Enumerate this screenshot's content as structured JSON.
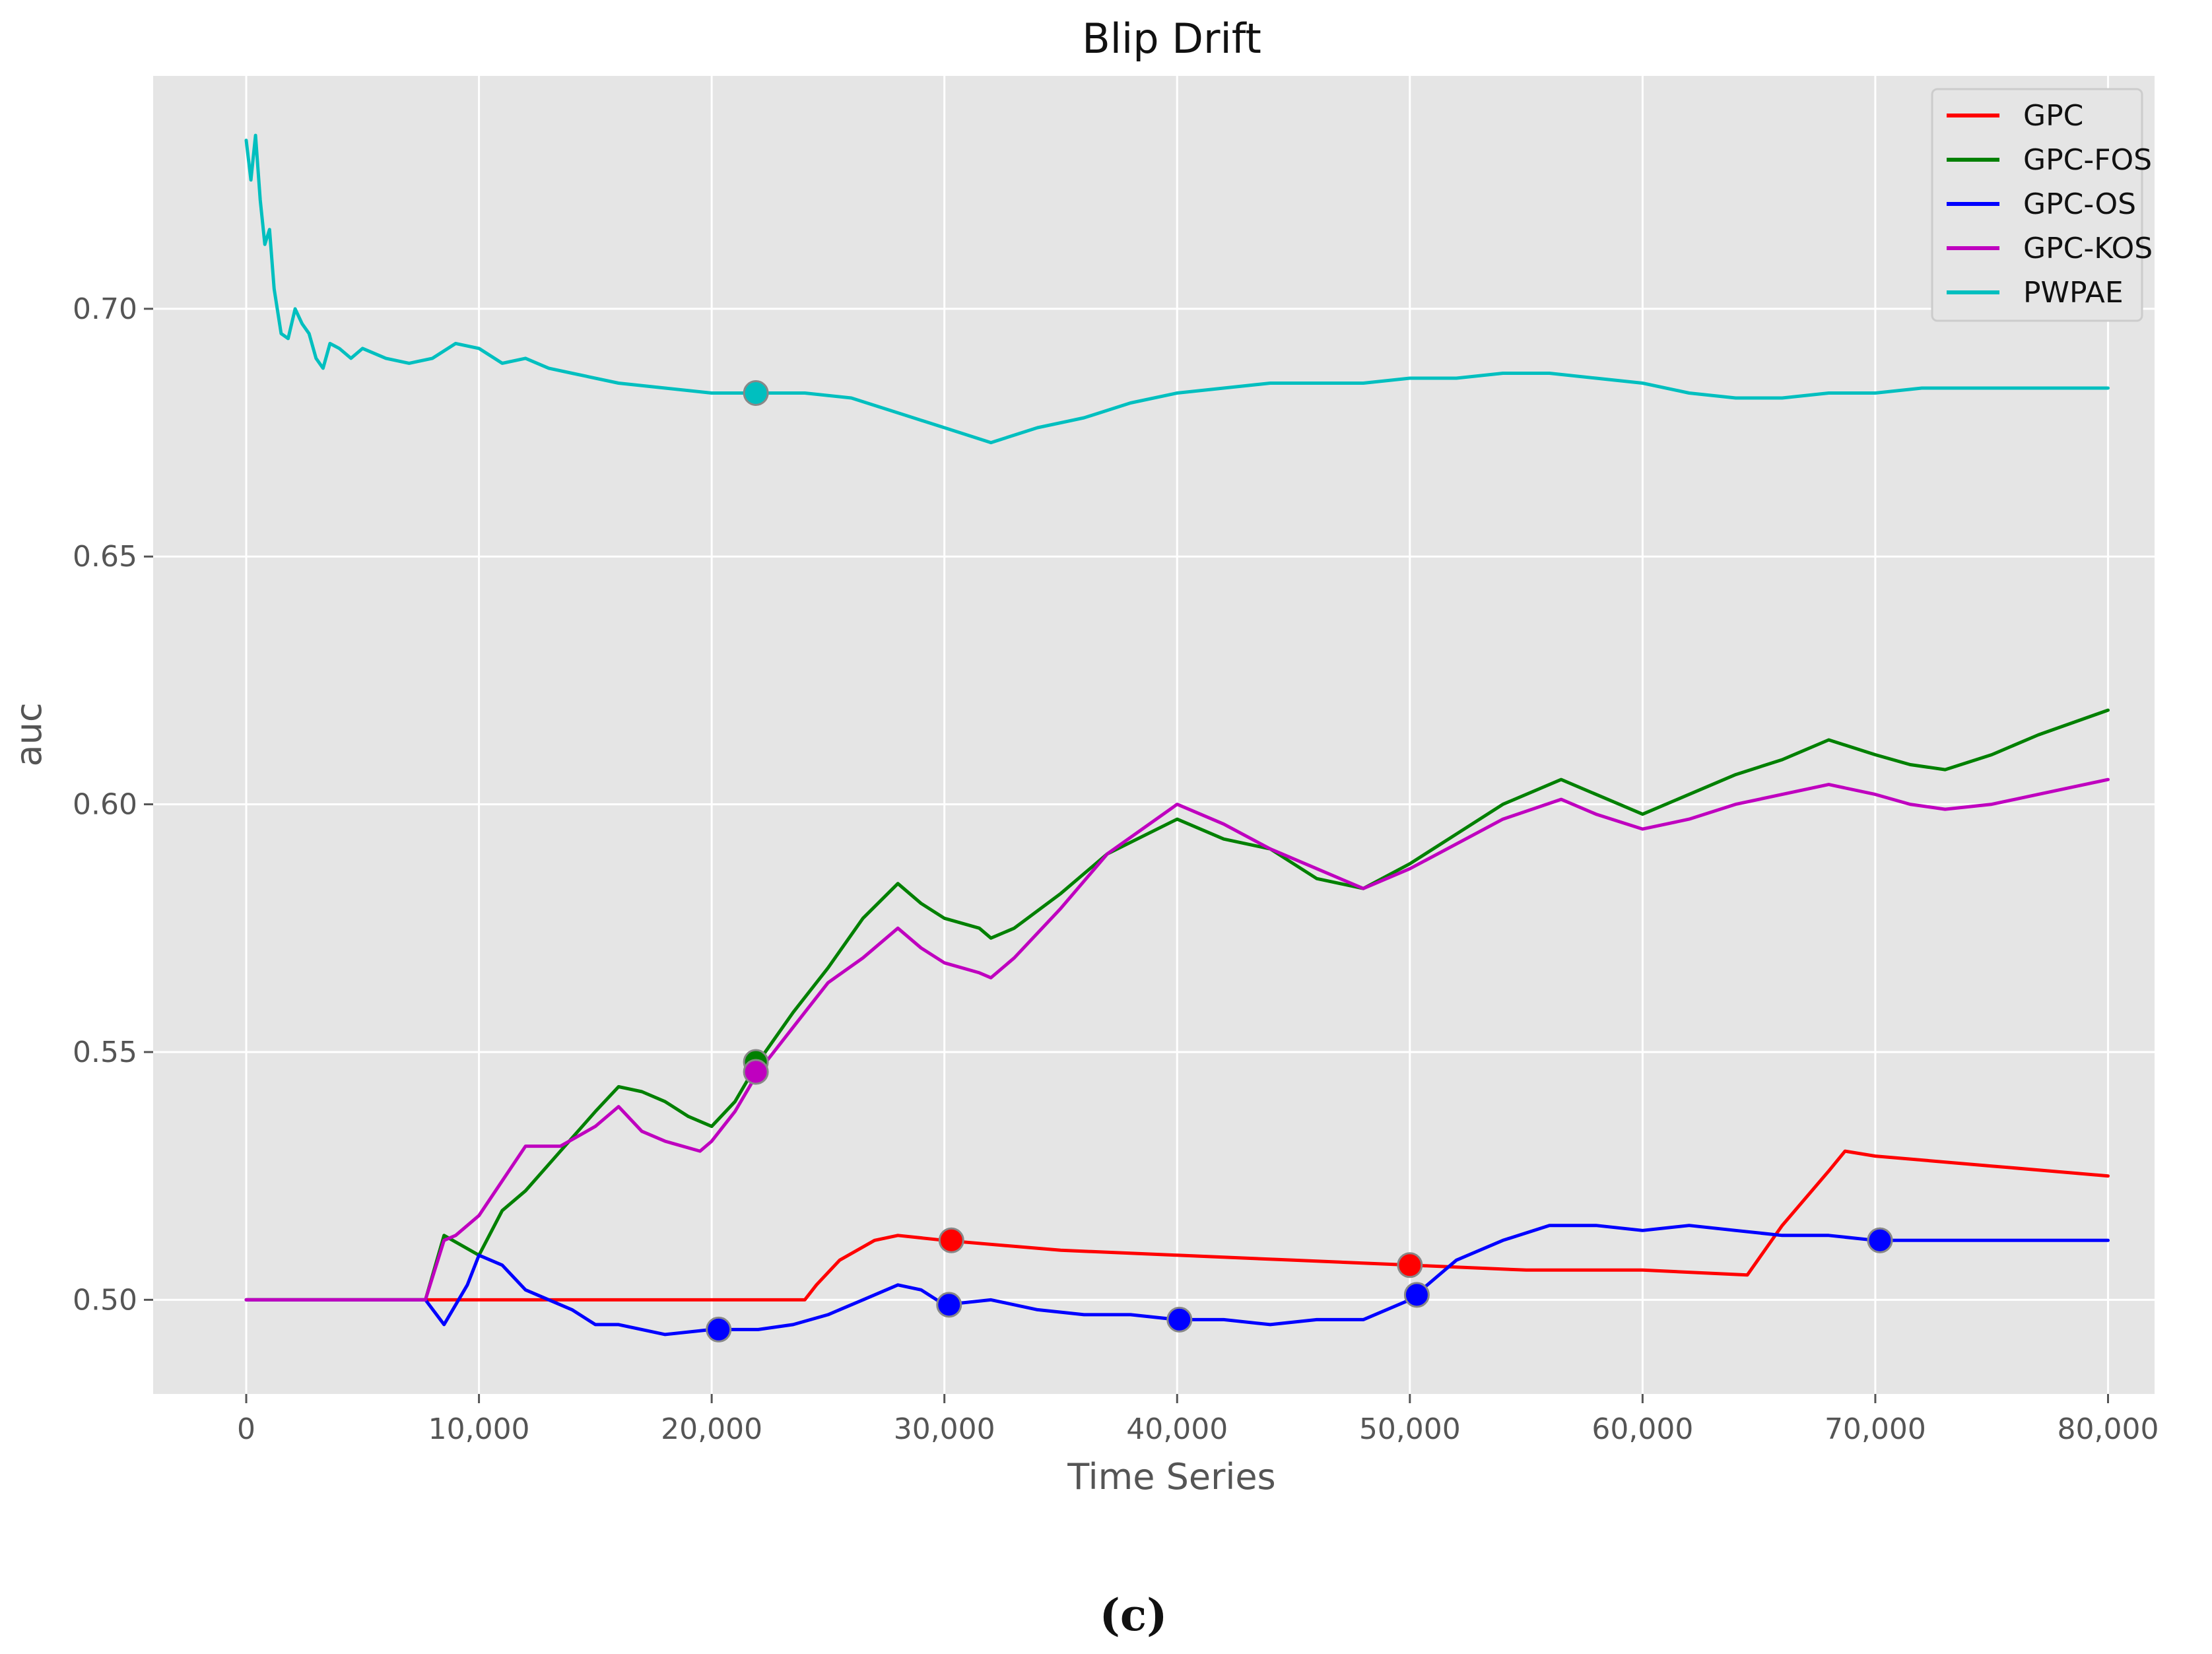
{
  "chart_data": {
    "type": "line",
    "title": "Blip Drift",
    "xlabel": "Time Series",
    "ylabel": "auc",
    "caption": "(c)",
    "xlim": [
      -4000,
      82000
    ],
    "ylim": [
      0.481,
      0.747
    ],
    "x_ticks": [
      0,
      10000,
      20000,
      30000,
      40000,
      50000,
      60000,
      70000,
      80000
    ],
    "x_tick_labels": [
      "0",
      "10,000",
      "20,000",
      "30,000",
      "40,000",
      "50,000",
      "60,000",
      "70,000",
      "80,000"
    ],
    "y_ticks": [
      0.5,
      0.55,
      0.6,
      0.65,
      0.7
    ],
    "y_tick_labels": [
      "0.50",
      "0.55",
      "0.60",
      "0.65",
      "0.70"
    ],
    "grid": true,
    "legend_position": "top-right",
    "background": "#e5e5e5",
    "series": [
      {
        "name": "GPC",
        "color": "#ff0000",
        "x": [
          0,
          8000,
          10000,
          20000,
          24000,
          24500,
          25500,
          27000,
          28000,
          30000,
          35000,
          40000,
          45000,
          50000,
          55000,
          60000,
          64500,
          66000,
          68000,
          68700,
          70000,
          75000,
          80000
        ],
        "y": [
          0.5,
          0.5,
          0.5,
          0.5,
          0.5,
          0.503,
          0.508,
          0.512,
          0.513,
          0.512,
          0.51,
          0.509,
          0.508,
          0.507,
          0.506,
          0.506,
          0.505,
          0.515,
          0.526,
          0.53,
          0.529,
          0.527,
          0.525
        ],
        "markers": [
          {
            "x": 30300,
            "y": 0.512
          },
          {
            "x": 50000,
            "y": 0.507
          },
          {
            "x": 70200,
            "y": 0.512
          }
        ]
      },
      {
        "name": "GPC-FOS",
        "color": "#008000",
        "x": [
          0,
          7700,
          8500,
          10000,
          11000,
          12000,
          13500,
          15000,
          16000,
          17000,
          18000,
          19000,
          20000,
          21000,
          22000,
          23500,
          25000,
          26500,
          28000,
          29000,
          30000,
          31500,
          32000,
          33000,
          35000,
          37000,
          40000,
          42000,
          44000,
          46000,
          48000,
          50000,
          52000,
          54000,
          56500,
          58000,
          60000,
          62000,
          64000,
          66000,
          68000,
          70000,
          71500,
          73000,
          75000,
          77000,
          80000
        ],
        "y": [
          0.5,
          0.5,
          0.513,
          0.509,
          0.518,
          0.522,
          0.53,
          0.538,
          0.543,
          0.542,
          0.54,
          0.537,
          0.535,
          0.54,
          0.548,
          0.558,
          0.567,
          0.577,
          0.584,
          0.58,
          0.577,
          0.575,
          0.573,
          0.575,
          0.582,
          0.59,
          0.597,
          0.593,
          0.591,
          0.585,
          0.583,
          0.588,
          0.594,
          0.6,
          0.605,
          0.602,
          0.598,
          0.602,
          0.606,
          0.609,
          0.613,
          0.61,
          0.608,
          0.607,
          0.61,
          0.614,
          0.619
        ],
        "markers": [
          {
            "x": 21900,
            "y": 0.548
          }
        ]
      },
      {
        "name": "GPC-OS",
        "color": "#0000ff",
        "x": [
          0,
          7700,
          8500,
          9500,
          10000,
          11000,
          12000,
          14000,
          15000,
          16000,
          18000,
          20000,
          22000,
          23500,
          25000,
          26500,
          28000,
          29000,
          30000,
          32000,
          34000,
          36000,
          38000,
          40000,
          42000,
          44000,
          46000,
          48000,
          50000,
          52000,
          54000,
          56000,
          58000,
          60000,
          62000,
          64000,
          66000,
          68000,
          70000,
          72000,
          75000,
          78000,
          80000
        ],
        "y": [
          0.5,
          0.5,
          0.495,
          0.503,
          0.509,
          0.507,
          0.502,
          0.498,
          0.495,
          0.495,
          0.493,
          0.494,
          0.494,
          0.495,
          0.497,
          0.5,
          0.503,
          0.502,
          0.499,
          0.5,
          0.498,
          0.497,
          0.497,
          0.496,
          0.496,
          0.495,
          0.496,
          0.496,
          0.5,
          0.508,
          0.512,
          0.515,
          0.515,
          0.514,
          0.515,
          0.514,
          0.513,
          0.513,
          0.512,
          0.512,
          0.512,
          0.512,
          0.512
        ],
        "markers": [
          {
            "x": 20300,
            "y": 0.494
          },
          {
            "x": 30200,
            "y": 0.499
          },
          {
            "x": 40100,
            "y": 0.496
          },
          {
            "x": 50300,
            "y": 0.501
          },
          {
            "x": 70200,
            "y": 0.512
          }
        ]
      },
      {
        "name": "GPC-KOS",
        "color": "#bf00bf",
        "x": [
          0,
          7700,
          8500,
          9000,
          10000,
          11000,
          12000,
          13500,
          15000,
          16000,
          17000,
          18000,
          19500,
          20000,
          21000,
          22000,
          23500,
          25000,
          26500,
          28000,
          29000,
          30000,
          31500,
          32000,
          33000,
          35000,
          37000,
          40000,
          42000,
          44000,
          46000,
          48000,
          50000,
          52000,
          54000,
          56500,
          58000,
          60000,
          62000,
          64000,
          66000,
          68000,
          70000,
          71500,
          73000,
          75000,
          77000,
          80000
        ],
        "y": [
          0.5,
          0.5,
          0.512,
          0.513,
          0.517,
          0.524,
          0.531,
          0.531,
          0.535,
          0.539,
          0.534,
          0.532,
          0.53,
          0.532,
          0.538,
          0.546,
          0.555,
          0.564,
          0.569,
          0.575,
          0.571,
          0.568,
          0.566,
          0.565,
          0.569,
          0.579,
          0.59,
          0.6,
          0.596,
          0.591,
          0.587,
          0.583,
          0.587,
          0.592,
          0.597,
          0.601,
          0.598,
          0.595,
          0.597,
          0.6,
          0.602,
          0.604,
          0.602,
          0.6,
          0.599,
          0.6,
          0.602,
          0.605
        ],
        "markers": [
          {
            "x": 21900,
            "y": 0.546
          }
        ]
      },
      {
        "name": "PWPAE",
        "color": "#00bfbf",
        "x": [
          0,
          200,
          400,
          600,
          800,
          1000,
          1200,
          1500,
          1800,
          2100,
          2400,
          2700,
          3000,
          3300,
          3600,
          4000,
          4500,
          5000,
          6000,
          7000,
          8000,
          9000,
          10000,
          11000,
          12000,
          13000,
          14000,
          16000,
          18000,
          20000,
          22000,
          24000,
          26000,
          28000,
          30000,
          32000,
          34000,
          36000,
          38000,
          40000,
          42000,
          44000,
          46000,
          48000,
          50000,
          52000,
          54000,
          56000,
          58000,
          60000,
          62000,
          64000,
          66000,
          68000,
          70000,
          72000,
          74000,
          76000,
          78000,
          80000
        ],
        "y": [
          0.734,
          0.726,
          0.735,
          0.722,
          0.713,
          0.716,
          0.704,
          0.695,
          0.694,
          0.7,
          0.697,
          0.695,
          0.69,
          0.688,
          0.693,
          0.692,
          0.69,
          0.692,
          0.69,
          0.689,
          0.69,
          0.693,
          0.692,
          0.689,
          0.69,
          0.688,
          0.687,
          0.685,
          0.684,
          0.683,
          0.683,
          0.683,
          0.682,
          0.679,
          0.676,
          0.673,
          0.676,
          0.678,
          0.681,
          0.683,
          0.684,
          0.685,
          0.685,
          0.685,
          0.686,
          0.686,
          0.687,
          0.687,
          0.686,
          0.685,
          0.683,
          0.682,
          0.682,
          0.683,
          0.683,
          0.684,
          0.684,
          0.684,
          0.684,
          0.684
        ],
        "markers": [
          {
            "x": 21900,
            "y": 0.683
          }
        ]
      }
    ]
  }
}
